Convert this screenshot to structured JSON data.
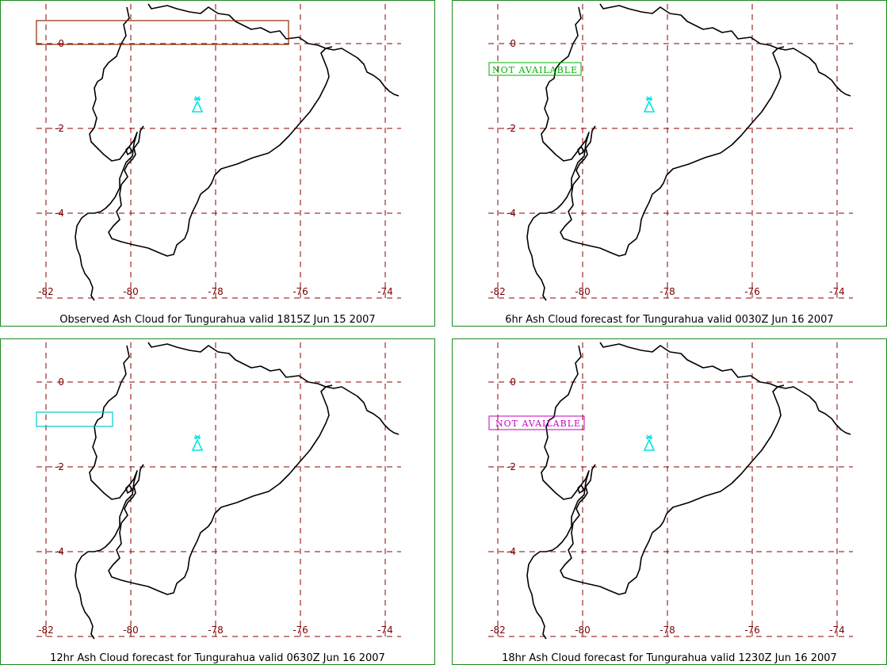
{
  "map": {
    "lon_labels": [
      "-82",
      "-80",
      "-78",
      "-76",
      "-74"
    ],
    "lat_labels": [
      "0",
      "-2",
      "-4"
    ],
    "volcano_symbol": "volcano-icon",
    "colors": {
      "grid": "#8b0000",
      "coast": "#000000",
      "volcano": "#00e5e5",
      "frame": "#1f8a1f"
    }
  },
  "panels": [
    {
      "caption": "Observed Ash Cloud for Tungurahua valid 1815Z Jun 15 2007",
      "ash_box_color": "#8b2a00",
      "status_label": ""
    },
    {
      "caption": "6hr Ash Cloud forecast for Tungurahua valid 0030Z Jun 16 2007",
      "ash_box_color": "",
      "status_label": "NOT AVAILABLE",
      "status_color": "#00b000"
    },
    {
      "caption": "12hr Ash Cloud forecast for Tungurahua valid 0630Z Jun 16 2007",
      "ash_box_color": "#00c8c8",
      "status_label": ""
    },
    {
      "caption": "18hr Ash Cloud forecast for Tungurahua valid 1230Z Jun 16 2007",
      "ash_box_color": "",
      "status_label": "NOT AVAILABLE",
      "status_color": "#c000c0"
    }
  ]
}
